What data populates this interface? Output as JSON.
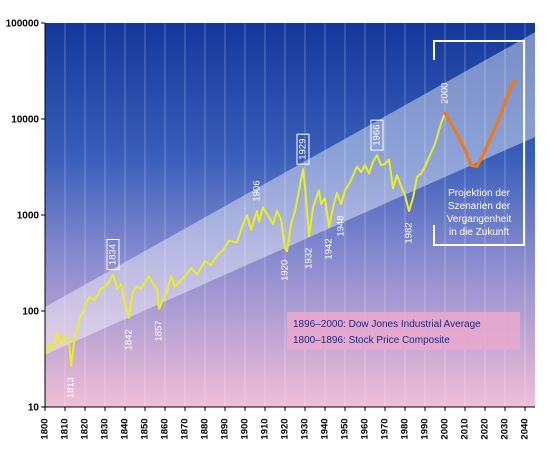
{
  "chart_data": {
    "type": "line",
    "xlim": [
      1800,
      2045
    ],
    "ylim": [
      10,
      100000
    ],
    "yscale": "log",
    "y_ticks": [
      10,
      100,
      1000,
      10000,
      100000
    ],
    "y_tick_labels": [
      "10",
      "100",
      "1000",
      "10000",
      "100000"
    ],
    "x_ticks": [
      1800,
      1810,
      1820,
      1830,
      1840,
      1850,
      1860,
      1870,
      1880,
      1890,
      1900,
      1910,
      1920,
      1930,
      1940,
      1950,
      1960,
      1970,
      1980,
      1990,
      2000,
      2010,
      2020,
      2030,
      2040
    ],
    "x_tick_labels": [
      "1800",
      "1810",
      "1820",
      "1830",
      "1840",
      "1850",
      "1860",
      "1870",
      "1880",
      "1890",
      "1900",
      "1910",
      "1920",
      "1930",
      "1940",
      "1950",
      "1960",
      "1970",
      "1980",
      "1990",
      "2000",
      "2010",
      "2020",
      "2030",
      "2040"
    ],
    "grid": "vertical",
    "series": [
      {
        "name": "",
        "color": "#e8f020",
        "points": [
          [
            1800,
            35
          ],
          [
            1802,
            45
          ],
          [
            1804,
            40
          ],
          [
            1806,
            60
          ],
          [
            1808,
            45
          ],
          [
            1810,
            55
          ],
          [
            1812,
            48
          ],
          [
            1813,
            27
          ],
          [
            1815,
            55
          ],
          [
            1818,
            90
          ],
          [
            1820,
            110
          ],
          [
            1822,
            140
          ],
          [
            1825,
            130
          ],
          [
            1828,
            170
          ],
          [
            1830,
            180
          ],
          [
            1832,
            200
          ],
          [
            1834,
            240
          ],
          [
            1836,
            170
          ],
          [
            1838,
            190
          ],
          [
            1840,
            120
          ],
          [
            1842,
            85
          ],
          [
            1844,
            160
          ],
          [
            1846,
            180
          ],
          [
            1848,
            170
          ],
          [
            1850,
            200
          ],
          [
            1852,
            230
          ],
          [
            1854,
            190
          ],
          [
            1856,
            170
          ],
          [
            1857,
            105
          ],
          [
            1859,
            130
          ],
          [
            1861,
            160
          ],
          [
            1863,
            230
          ],
          [
            1865,
            180
          ],
          [
            1867,
            200
          ],
          [
            1870,
            230
          ],
          [
            1873,
            280
          ],
          [
            1876,
            240
          ],
          [
            1880,
            330
          ],
          [
            1883,
            300
          ],
          [
            1886,
            380
          ],
          [
            1889,
            430
          ],
          [
            1892,
            540
          ],
          [
            1896,
            520
          ],
          [
            1899,
            800
          ],
          [
            1901,
            1000
          ],
          [
            1903,
            700
          ],
          [
            1906,
            1100
          ],
          [
            1907,
            850
          ],
          [
            1909,
            1200
          ],
          [
            1912,
            950
          ],
          [
            1914,
            800
          ],
          [
            1916,
            1100
          ],
          [
            1918,
            900
          ],
          [
            1920,
            450
          ],
          [
            1921,
            420
          ],
          [
            1923,
            800
          ],
          [
            1925,
            1100
          ],
          [
            1927,
            1800
          ],
          [
            1929,
            3000
          ],
          [
            1930,
            2000
          ],
          [
            1932,
            600
          ],
          [
            1934,
            1200
          ],
          [
            1937,
            1800
          ],
          [
            1938,
            1300
          ],
          [
            1940,
            1500
          ],
          [
            1942,
            750
          ],
          [
            1944,
            1200
          ],
          [
            1946,
            1700
          ],
          [
            1948,
            1300
          ],
          [
            1950,
            1800
          ],
          [
            1953,
            2300
          ],
          [
            1956,
            3200
          ],
          [
            1958,
            2800
          ],
          [
            1960,
            3300
          ],
          [
            1962,
            2700
          ],
          [
            1964,
            3600
          ],
          [
            1966,
            4200
          ],
          [
            1968,
            3300
          ],
          [
            1970,
            3400
          ],
          [
            1972,
            3800
          ],
          [
            1974,
            1900
          ],
          [
            1976,
            2600
          ],
          [
            1978,
            2000
          ],
          [
            1980,
            1600
          ],
          [
            1982,
            1100
          ],
          [
            1984,
            1500
          ],
          [
            1986,
            2500
          ],
          [
            1988,
            2700
          ],
          [
            1990,
            3200
          ],
          [
            1992,
            4000
          ],
          [
            1995,
            5500
          ],
          [
            1998,
            9000
          ],
          [
            2000,
            11500
          ]
        ]
      },
      {
        "name": "",
        "color": "#ee7a18",
        "points": [
          [
            2000,
            11500
          ],
          [
            2003,
            9000
          ],
          [
            2006,
            7000
          ],
          [
            2010,
            4800
          ],
          [
            2013,
            3300
          ],
          [
            2016,
            3200
          ],
          [
            2019,
            4200
          ],
          [
            2023,
            6500
          ],
          [
            2027,
            10000
          ],
          [
            2030,
            15000
          ],
          [
            2033,
            22000
          ],
          [
            2035,
            25000
          ]
        ]
      }
    ],
    "band": {
      "upper": [
        [
          1800,
          110
        ],
        [
          2045,
          80000
        ]
      ],
      "lower": [
        [
          1800,
          35
        ],
        [
          2045,
          6500
        ]
      ]
    },
    "year_labels": [
      {
        "x": 1813,
        "y": 27,
        "text": "1813",
        "boxed": false
      },
      {
        "x": 1834,
        "y": 240,
        "text": "1834",
        "boxed": true
      },
      {
        "x": 1842,
        "y": 85,
        "text": "1842",
        "boxed": false
      },
      {
        "x": 1857,
        "y": 105,
        "text": "1857",
        "boxed": false
      },
      {
        "x": 1906,
        "y": 1100,
        "text": "1906",
        "boxed": false
      },
      {
        "x": 1920,
        "y": 450,
        "text": "1920",
        "boxed": false
      },
      {
        "x": 1929,
        "y": 3000,
        "text": "1929",
        "boxed": true
      },
      {
        "x": 1932,
        "y": 600,
        "text": "1932",
        "boxed": false
      },
      {
        "x": 1942,
        "y": 750,
        "text": "1942",
        "boxed": false
      },
      {
        "x": 1948,
        "y": 1300,
        "text": "1948",
        "boxed": false
      },
      {
        "x": 1966,
        "y": 4200,
        "text": "1966",
        "boxed": true
      },
      {
        "x": 1982,
        "y": 1100,
        "text": "1982",
        "boxed": false
      },
      {
        "x": 2000,
        "y": 11500,
        "text": "2000",
        "boxed": false
      }
    ],
    "legend": {
      "line1": "1896–2000: Dow Jones Industrial Average",
      "line2": "1800–1896: Stock Price Composite"
    },
    "projection_label": [
      "Projektion der",
      "Szenarien der",
      "Vergangenheit",
      "in die Zukunft"
    ]
  }
}
